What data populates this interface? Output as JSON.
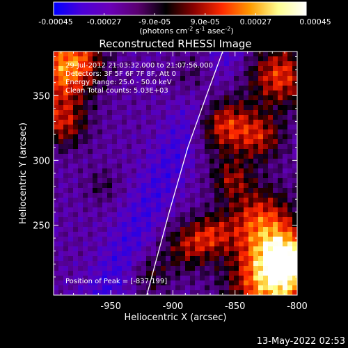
{
  "colorbar": {
    "tick_labels": [
      "-0.00045",
      "-0.00027",
      "-9.0e-05",
      "9.0e-05",
      "0.00027",
      "0.00045"
    ],
    "unit_text": "(photons cm",
    "unit_exp1": "-2",
    "unit_mid1": " s",
    "unit_exp2": "-1",
    "unit_mid2": " asec",
    "unit_exp3": "-2",
    "unit_close": ")",
    "gradient_colors": [
      "#0000ff",
      "#4b00d8",
      "#6a00b8",
      "#5a0070",
      "#000000",
      "#8a0000",
      "#ff2a00",
      "#ff9a00",
      "#ffff90",
      "#ffffff"
    ]
  },
  "plot": {
    "title": "Reconstructed RHESSI Image",
    "info_lines": [
      "29-Jul-2012 21:03:32.000 to 21:07:56.000",
      "Detectors: 3F 5F 6F 7F 8F, Att 0",
      "Energy Range: 25.0 - 50.0 keV",
      "Clean    Total counts: 5.03E+03"
    ],
    "peak_text": "Position of Peak = [-837,199]",
    "xlabel": "Heliocentric X (arcsec)",
    "ylabel": "Heliocentric Y (arcsec)",
    "x_ticks": [
      "-950",
      "-900",
      "-850",
      "-800"
    ],
    "y_ticks": [
      "250",
      "300",
      "350"
    ]
  },
  "chart_data": {
    "type": "heatmap",
    "title": "Reconstructed RHESSI Image",
    "xlabel": "Heliocentric X (arcsec)",
    "ylabel": "Heliocentric Y (arcsec)",
    "xlim": [
      -996,
      -800
    ],
    "ylim": [
      196,
      384
    ],
    "x_tick_values": [
      -950,
      -900,
      -850,
      -800
    ],
    "y_tick_values": [
      250,
      300,
      350
    ],
    "colorbar_range": [
      -0.00045,
      0.00045
    ],
    "peak_position": [
      -837,
      199
    ],
    "limb_points": [
      [
        -921,
        196
      ],
      [
        -903,
        260
      ],
      [
        -888,
        310
      ],
      [
        -873,
        350
      ],
      [
        -860,
        384
      ]
    ]
  },
  "footer": {
    "date": "13-May-2022 02:53"
  }
}
